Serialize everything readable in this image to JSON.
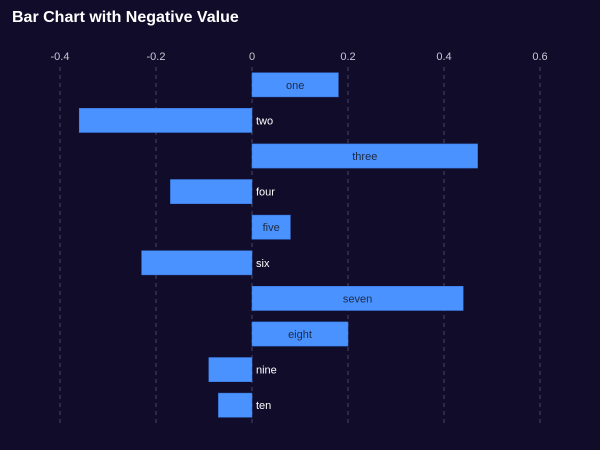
{
  "chart_data": {
    "type": "bar",
    "orientation": "horizontal",
    "title": "Bar Chart with Negative Value",
    "categories": [
      "one",
      "two",
      "three",
      "four",
      "five",
      "six",
      "seven",
      "eight",
      "nine",
      "ten"
    ],
    "values": [
      0.18,
      -0.36,
      0.47,
      -0.17,
      0.08,
      -0.23,
      0.44,
      0.2,
      -0.09,
      -0.07
    ],
    "xlim": [
      -0.4,
      0.6
    ],
    "xticks": [
      "-0.4",
      "-0.2",
      "0",
      "0.2",
      "0.4",
      "0.6"
    ],
    "xaxis_position": "top",
    "grid": "vertical dashed",
    "legend": "none",
    "colors": {
      "background": "#100c2a",
      "bar": "#4992ff",
      "bar_stroke": "#3b7ae0",
      "label_inside": "#1f2a44",
      "label_outside": "#ffffff"
    }
  }
}
